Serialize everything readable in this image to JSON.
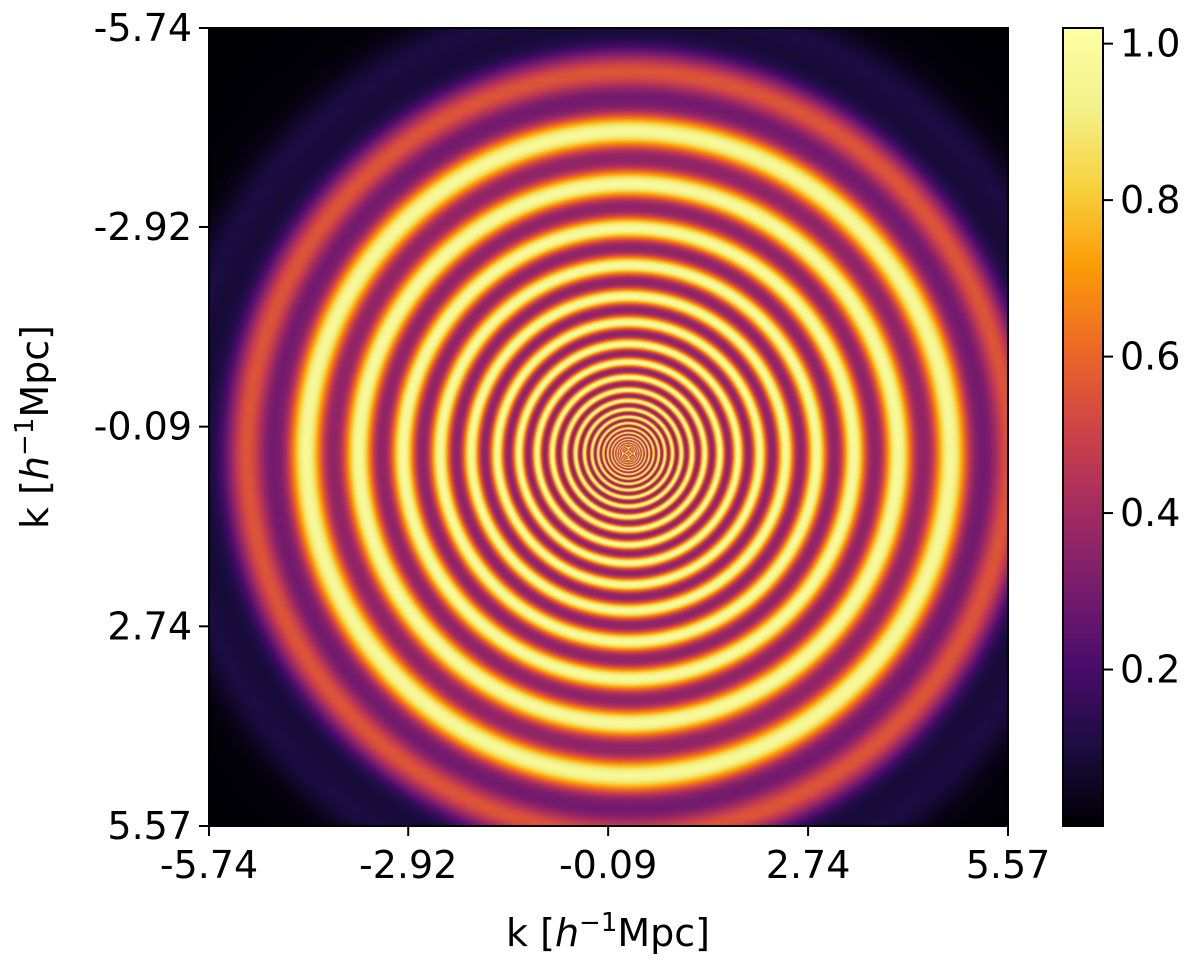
{
  "chart_data": {
    "type": "heatmap",
    "title": "",
    "xlabel": {
      "prefix": "k [",
      "h": "h",
      "exp": "−1",
      "suffix": "Mpc]"
    },
    "ylabel": {
      "prefix": "k [",
      "h": "h",
      "exp": "−1",
      "suffix": "Mpc]"
    },
    "x_ticks": [
      "-5.74",
      "-2.92",
      "-0.09",
      "2.74",
      "5.57"
    ],
    "y_ticks": [
      "-5.74",
      "-2.92",
      "-0.09",
      "2.74",
      "5.57"
    ],
    "xlim": [
      -5.74,
      5.57
    ],
    "ylim": [
      -5.74,
      5.57
    ],
    "y_axis_inverted": true,
    "center": [
      -0.09,
      -0.09
    ],
    "pattern": "concentric rings whose spacing grows with radius, intensity near 1 on ring crests, dark toward the corners",
    "colormap": "inferno",
    "colorbar": {
      "ticks": [
        "0.2",
        "0.4",
        "0.6",
        "0.8",
        "1.0"
      ],
      "tick_values": [
        0.2,
        0.4,
        0.6,
        0.8,
        1.0
      ],
      "range": [
        0.0,
        1.02
      ]
    }
  }
}
